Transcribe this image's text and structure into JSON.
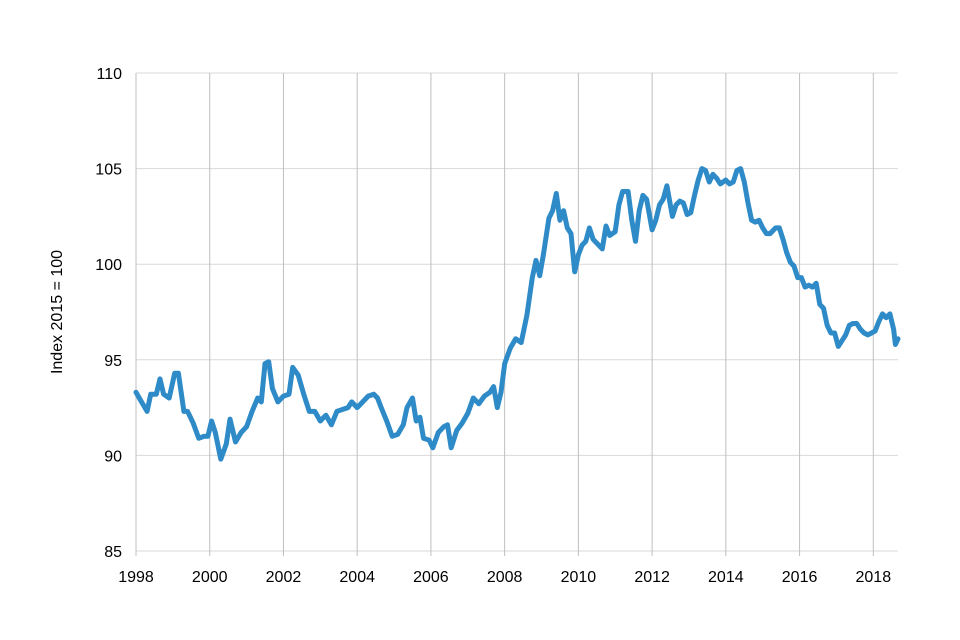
{
  "chart_data": {
    "type": "line",
    "title": "",
    "xlabel": "",
    "ylabel": "Index 2015 = 100",
    "xlim": [
      1998.0,
      2018.67
    ],
    "ylim": [
      85,
      110
    ],
    "x_ticks": [
      "1998",
      "2000",
      "2002",
      "2004",
      "2006",
      "2008",
      "2010",
      "2012",
      "2014",
      "2016",
      "2018"
    ],
    "y_ticks": [
      "85",
      "90",
      "95",
      "100",
      "105",
      "110"
    ],
    "grid": "vertical at x ticks, horizontal at y ticks",
    "legend": "none",
    "series": [
      {
        "color": "#2e8bc8",
        "points": [
          [
            1998.0,
            93.3
          ],
          [
            1998.15,
            92.8
          ],
          [
            1998.3,
            92.3
          ],
          [
            1998.4,
            93.2
          ],
          [
            1998.55,
            93.2
          ],
          [
            1998.65,
            94.0
          ],
          [
            1998.75,
            93.2
          ],
          [
            1998.9,
            93.0
          ],
          [
            1999.05,
            94.3
          ],
          [
            1999.15,
            94.3
          ],
          [
            1999.3,
            92.3
          ],
          [
            1999.4,
            92.3
          ],
          [
            1999.55,
            91.7
          ],
          [
            1999.7,
            90.9
          ],
          [
            1999.85,
            91.0
          ],
          [
            1999.95,
            91.0
          ],
          [
            2000.05,
            91.8
          ],
          [
            2000.15,
            91.2
          ],
          [
            2000.3,
            89.8
          ],
          [
            2000.45,
            90.6
          ],
          [
            2000.55,
            91.9
          ],
          [
            2000.7,
            90.7
          ],
          [
            2000.85,
            91.2
          ],
          [
            2001.0,
            91.5
          ],
          [
            2001.15,
            92.3
          ],
          [
            2001.3,
            93.0
          ],
          [
            2001.4,
            92.8
          ],
          [
            2001.5,
            94.8
          ],
          [
            2001.6,
            94.9
          ],
          [
            2001.7,
            93.5
          ],
          [
            2001.85,
            92.8
          ],
          [
            2002.0,
            93.1
          ],
          [
            2002.15,
            93.2
          ],
          [
            2002.25,
            94.6
          ],
          [
            2002.4,
            94.2
          ],
          [
            2002.55,
            93.2
          ],
          [
            2002.7,
            92.3
          ],
          [
            2002.85,
            92.3
          ],
          [
            2003.0,
            91.8
          ],
          [
            2003.15,
            92.1
          ],
          [
            2003.3,
            91.6
          ],
          [
            2003.45,
            92.3
          ],
          [
            2003.6,
            92.4
          ],
          [
            2003.75,
            92.5
          ],
          [
            2003.85,
            92.8
          ],
          [
            2004.0,
            92.5
          ],
          [
            2004.15,
            92.8
          ],
          [
            2004.3,
            93.1
          ],
          [
            2004.45,
            93.2
          ],
          [
            2004.55,
            93.0
          ],
          [
            2004.65,
            92.5
          ],
          [
            2004.8,
            91.8
          ],
          [
            2004.95,
            91.0
          ],
          [
            2005.1,
            91.1
          ],
          [
            2005.25,
            91.6
          ],
          [
            2005.35,
            92.5
          ],
          [
            2005.5,
            93.0
          ],
          [
            2005.6,
            91.8
          ],
          [
            2005.7,
            92.0
          ],
          [
            2005.8,
            90.9
          ],
          [
            2005.95,
            90.8
          ],
          [
            2006.05,
            90.4
          ],
          [
            2006.2,
            91.2
          ],
          [
            2006.35,
            91.5
          ],
          [
            2006.45,
            91.6
          ],
          [
            2006.55,
            90.4
          ],
          [
            2006.7,
            91.3
          ],
          [
            2006.85,
            91.7
          ],
          [
            2007.0,
            92.2
          ],
          [
            2007.15,
            93.0
          ],
          [
            2007.3,
            92.7
          ],
          [
            2007.45,
            93.1
          ],
          [
            2007.6,
            93.3
          ],
          [
            2007.7,
            93.6
          ],
          [
            2007.8,
            92.5
          ],
          [
            2007.9,
            93.3
          ],
          [
            2008.0,
            94.8
          ],
          [
            2008.15,
            95.6
          ],
          [
            2008.3,
            96.1
          ],
          [
            2008.45,
            95.9
          ],
          [
            2008.6,
            97.3
          ],
          [
            2008.75,
            99.3
          ],
          [
            2008.85,
            100.2
          ],
          [
            2008.95,
            99.4
          ],
          [
            2009.05,
            100.5
          ],
          [
            2009.2,
            102.4
          ],
          [
            2009.3,
            102.8
          ],
          [
            2009.4,
            103.7
          ],
          [
            2009.5,
            102.3
          ],
          [
            2009.6,
            102.8
          ],
          [
            2009.7,
            101.9
          ],
          [
            2009.8,
            101.6
          ],
          [
            2009.9,
            99.6
          ],
          [
            2010.0,
            100.5
          ],
          [
            2010.1,
            101.0
          ],
          [
            2010.2,
            101.2
          ],
          [
            2010.3,
            101.9
          ],
          [
            2010.4,
            101.3
          ],
          [
            2010.55,
            101.0
          ],
          [
            2010.65,
            100.8
          ],
          [
            2010.75,
            102.0
          ],
          [
            2010.85,
            101.5
          ],
          [
            2011.0,
            101.7
          ],
          [
            2011.1,
            103.1
          ],
          [
            2011.2,
            103.8
          ],
          [
            2011.35,
            103.8
          ],
          [
            2011.45,
            102.3
          ],
          [
            2011.55,
            101.2
          ],
          [
            2011.65,
            102.8
          ],
          [
            2011.75,
            103.6
          ],
          [
            2011.85,
            103.4
          ],
          [
            2012.0,
            101.8
          ],
          [
            2012.1,
            102.3
          ],
          [
            2012.2,
            103.1
          ],
          [
            2012.3,
            103.4
          ],
          [
            2012.4,
            104.1
          ],
          [
            2012.55,
            102.5
          ],
          [
            2012.65,
            103.1
          ],
          [
            2012.75,
            103.3
          ],
          [
            2012.85,
            103.2
          ],
          [
            2012.95,
            102.6
          ],
          [
            2013.05,
            102.7
          ],
          [
            2013.15,
            103.6
          ],
          [
            2013.25,
            104.4
          ],
          [
            2013.35,
            105.0
          ],
          [
            2013.45,
            104.9
          ],
          [
            2013.55,
            104.3
          ],
          [
            2013.65,
            104.7
          ],
          [
            2013.75,
            104.5
          ],
          [
            2013.85,
            104.2
          ],
          [
            2014.0,
            104.4
          ],
          [
            2014.1,
            104.2
          ],
          [
            2014.2,
            104.3
          ],
          [
            2014.3,
            104.9
          ],
          [
            2014.4,
            105.0
          ],
          [
            2014.5,
            104.3
          ],
          [
            2014.6,
            103.2
          ],
          [
            2014.7,
            102.3
          ],
          [
            2014.8,
            102.2
          ],
          [
            2014.9,
            102.3
          ],
          [
            2015.0,
            101.9
          ],
          [
            2015.1,
            101.6
          ],
          [
            2015.2,
            101.6
          ],
          [
            2015.35,
            101.9
          ],
          [
            2015.45,
            101.9
          ],
          [
            2015.55,
            101.3
          ],
          [
            2015.65,
            100.6
          ],
          [
            2015.75,
            100.1
          ],
          [
            2015.85,
            99.9
          ],
          [
            2015.95,
            99.3
          ],
          [
            2016.05,
            99.3
          ],
          [
            2016.15,
            98.8
          ],
          [
            2016.25,
            98.9
          ],
          [
            2016.35,
            98.8
          ],
          [
            2016.45,
            99.0
          ],
          [
            2016.55,
            97.9
          ],
          [
            2016.65,
            97.7
          ],
          [
            2016.75,
            96.8
          ],
          [
            2016.85,
            96.4
          ],
          [
            2016.95,
            96.4
          ],
          [
            2017.05,
            95.7
          ],
          [
            2017.15,
            96.0
          ],
          [
            2017.25,
            96.3
          ],
          [
            2017.35,
            96.8
          ],
          [
            2017.45,
            96.9
          ],
          [
            2017.55,
            96.9
          ],
          [
            2017.65,
            96.6
          ],
          [
            2017.75,
            96.4
          ],
          [
            2017.85,
            96.3
          ],
          [
            2017.95,
            96.4
          ],
          [
            2018.05,
            96.5
          ],
          [
            2018.15,
            97.0
          ],
          [
            2018.25,
            97.4
          ],
          [
            2018.35,
            97.2
          ],
          [
            2018.45,
            97.4
          ],
          [
            2018.55,
            96.6
          ],
          [
            2018.6,
            95.8
          ],
          [
            2018.67,
            96.1
          ]
        ]
      }
    ]
  }
}
